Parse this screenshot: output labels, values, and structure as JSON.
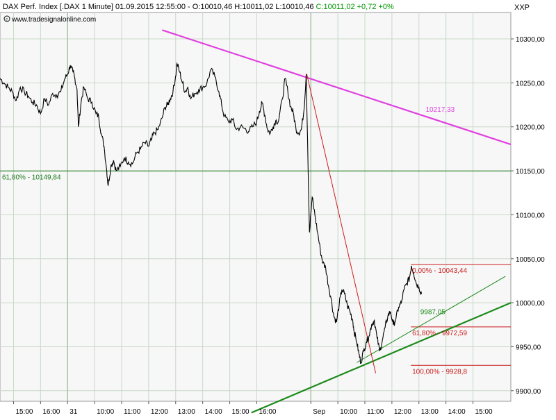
{
  "header": {
    "title": "DAX Perf. Index [.DAX  1 Minute] 01.09.2015 12:55:00 - ",
    "ohlc": "O:10010,46 H:10011,02 L:10010,46 ",
    "change": "C:10011,02 +0,72 +0%",
    "axis_label": "XXP",
    "website": "www.tradesignalonline.com"
  },
  "colors": {
    "plot_bg": "#f7f7f7",
    "grid": "#c8d8c8",
    "frame": "#9a9a9a",
    "price": "#000000",
    "resistance": "#e040e0",
    "support": "#1a8a1a",
    "level_green": "#1a7a1a",
    "fib": "#cc1b1b",
    "header_green": "#009900",
    "header_text": "#000000"
  },
  "chart_data": {
    "type": "line",
    "title": "DAX Perf. Index [.DAX  1 Minute]",
    "xlabel": "",
    "ylabel": "",
    "ylim": [
      9888,
      10330
    ],
    "grid": true,
    "y_ticks": [
      {
        "value": 10300,
        "label": "10300,00"
      },
      {
        "value": 10250,
        "label": "10250,00"
      },
      {
        "value": 10200,
        "label": "10200,00"
      },
      {
        "value": 10150,
        "label": "10150,00"
      },
      {
        "value": 10100,
        "label": "10100,00"
      },
      {
        "value": 10050,
        "label": "10050,00"
      },
      {
        "value": 10000,
        "label": "10000,00"
      },
      {
        "value": 9950,
        "label": "9950,00"
      },
      {
        "value": 9900,
        "label": "9900,00"
      }
    ],
    "x_ticks": [
      {
        "value": 0.5,
        "label": "15:00"
      },
      {
        "value": 1.5,
        "label": "16:00"
      },
      {
        "value": 2.5,
        "label": "31"
      },
      {
        "value": 3.5,
        "label": "10:00"
      },
      {
        "value": 4.5,
        "label": "11:00"
      },
      {
        "value": 5.5,
        "label": "12:00"
      },
      {
        "value": 6.5,
        "label": "13:00"
      },
      {
        "value": 7.5,
        "label": "14:00"
      },
      {
        "value": 8.5,
        "label": "15:00"
      },
      {
        "value": 9.5,
        "label": "16:00"
      },
      {
        "value": 11.5,
        "label": "Sep"
      },
      {
        "value": 12.5,
        "label": "10:00"
      },
      {
        "value": 13.5,
        "label": "11:00"
      },
      {
        "value": 14.5,
        "label": "12:00"
      },
      {
        "value": 15.5,
        "label": "13:00"
      },
      {
        "value": 16.5,
        "label": "14:00"
      },
      {
        "value": 17.5,
        "label": "15:00"
      }
    ],
    "day_separators": [
      2.5,
      11.5
    ],
    "xlim": [
      0,
      18.9
    ],
    "series": [
      {
        "values": [
          [
            0.0,
            10255
          ],
          [
            0.15,
            10250
          ],
          [
            0.3,
            10245
          ],
          [
            0.45,
            10240
          ],
          [
            0.6,
            10230
          ],
          [
            0.75,
            10245
          ],
          [
            0.9,
            10240
          ],
          [
            1.05,
            10235
          ],
          [
            1.2,
            10228
          ],
          [
            1.35,
            10225
          ],
          [
            1.5,
            10215
          ],
          [
            1.65,
            10232
          ],
          [
            1.8,
            10225
          ],
          [
            1.95,
            10238
          ],
          [
            2.1,
            10236
          ],
          [
            2.25,
            10240
          ],
          [
            2.4,
            10255
          ],
          [
            2.5,
            10260
          ],
          [
            2.6,
            10270
          ],
          [
            2.7,
            10262
          ],
          [
            2.75,
            10258
          ],
          [
            2.85,
            10243
          ],
          [
            2.9,
            10200
          ],
          [
            3.0,
            10228
          ],
          [
            3.1,
            10245
          ],
          [
            3.25,
            10232
          ],
          [
            3.4,
            10228
          ],
          [
            3.55,
            10215
          ],
          [
            3.65,
            10212
          ],
          [
            3.75,
            10192
          ],
          [
            3.85,
            10178
          ],
          [
            3.95,
            10150
          ],
          [
            4.0,
            10133
          ],
          [
            4.1,
            10155
          ],
          [
            4.2,
            10162
          ],
          [
            4.3,
            10150
          ],
          [
            4.45,
            10155
          ],
          [
            4.6,
            10165
          ],
          [
            4.75,
            10160
          ],
          [
            4.9,
            10158
          ],
          [
            5.05,
            10170
          ],
          [
            5.2,
            10175
          ],
          [
            5.35,
            10182
          ],
          [
            5.5,
            10178
          ],
          [
            5.6,
            10185
          ],
          [
            5.7,
            10193
          ],
          [
            5.85,
            10197
          ],
          [
            6.0,
            10210
          ],
          [
            6.1,
            10222
          ],
          [
            6.2,
            10225
          ],
          [
            6.3,
            10232
          ],
          [
            6.4,
            10240
          ],
          [
            6.5,
            10258
          ],
          [
            6.55,
            10272
          ],
          [
            6.65,
            10262
          ],
          [
            6.75,
            10250
          ],
          [
            6.85,
            10240
          ],
          [
            6.95,
            10245
          ],
          [
            7.05,
            10232
          ],
          [
            7.2,
            10238
          ],
          [
            7.35,
            10242
          ],
          [
            7.5,
            10245
          ],
          [
            7.65,
            10249
          ],
          [
            7.8,
            10265
          ],
          [
            7.95,
            10257
          ],
          [
            8.1,
            10240
          ],
          [
            8.2,
            10225
          ],
          [
            8.3,
            10212
          ],
          [
            8.45,
            10206
          ],
          [
            8.6,
            10208
          ],
          [
            8.75,
            10197
          ],
          [
            8.9,
            10200
          ],
          [
            9.05,
            10198
          ],
          [
            9.2,
            10195
          ],
          [
            9.35,
            10200
          ],
          [
            9.5,
            10206
          ],
          [
            9.6,
            10218
          ],
          [
            9.7,
            10227
          ],
          [
            9.8,
            10213
          ],
          [
            9.9,
            10197
          ],
          [
            10.0,
            10193
          ],
          [
            10.1,
            10200
          ],
          [
            10.2,
            10207
          ],
          [
            10.3,
            10206
          ],
          [
            10.45,
            10232
          ],
          [
            10.55,
            10255
          ],
          [
            10.65,
            10240
          ],
          [
            10.75,
            10223
          ],
          [
            10.85,
            10216
          ],
          [
            10.95,
            10198
          ],
          [
            11.05,
            10193
          ],
          [
            11.15,
            10197
          ],
          [
            11.25,
            10220
          ],
          [
            11.33,
            10260
          ],
          [
            11.45,
            10080
          ],
          [
            11.55,
            10120
          ],
          [
            11.65,
            10100
          ],
          [
            11.75,
            10080
          ],
          [
            11.85,
            10060
          ],
          [
            11.95,
            10045
          ],
          [
            12.05,
            10040
          ],
          [
            12.15,
            10020
          ],
          [
            12.25,
            10005
          ],
          [
            12.35,
            9985
          ],
          [
            12.45,
            9978
          ],
          [
            12.55,
            9998
          ],
          [
            12.65,
            10015
          ],
          [
            12.75,
            10010
          ],
          [
            12.85,
            9997
          ],
          [
            12.95,
            9990
          ],
          [
            13.05,
            9980
          ],
          [
            13.1,
            9968
          ],
          [
            13.2,
            9955
          ],
          [
            13.28,
            9942
          ],
          [
            13.35,
            9932
          ],
          [
            13.45,
            9945
          ],
          [
            13.55,
            9955
          ],
          [
            13.65,
            9962
          ],
          [
            13.75,
            9975
          ],
          [
            13.85,
            9980
          ],
          [
            13.95,
            9960
          ],
          [
            14.05,
            9945
          ],
          [
            14.15,
            9958
          ],
          [
            14.25,
            9972
          ],
          [
            14.35,
            9985
          ],
          [
            14.45,
            9990
          ],
          [
            14.55,
            9975
          ],
          [
            14.65,
            9982
          ],
          [
            14.75,
            9995
          ],
          [
            14.85,
            10000
          ],
          [
            14.95,
            10015
          ],
          [
            15.05,
            10022
          ],
          [
            15.15,
            10028
          ],
          [
            15.22,
            10042
          ],
          [
            15.3,
            10035
          ],
          [
            15.4,
            10022
          ],
          [
            15.5,
            10018
          ],
          [
            15.6,
            10010
          ]
        ]
      }
    ],
    "lines": [
      {
        "kind": "resistance",
        "from": [
          6.0,
          10310
        ],
        "to": [
          18.9,
          10180
        ],
        "label": "10217,33",
        "label_at": [
          15.75,
          10217
        ]
      },
      {
        "kind": "support-main",
        "from": [
          9.3,
          9875
        ],
        "to": [
          18.9,
          10000
        ]
      },
      {
        "kind": "support-thin",
        "from": [
          13.2,
          9932
        ],
        "to": [
          18.7,
          10030
        ],
        "label": "9987,05",
        "label_at": [
          15.55,
          9987
        ]
      },
      {
        "kind": "fib-swing",
        "from": [
          11.35,
          10260
        ],
        "to": [
          13.9,
          9920
        ]
      },
      {
        "kind": "level-green",
        "value": 10149.84,
        "label": "61,80% - 10149,84"
      }
    ],
    "fib_levels": [
      {
        "value": 10043.44,
        "label": "0,00% - 10043,44"
      },
      {
        "value": 9972.59,
        "label": "61,80% - 9972,59"
      },
      {
        "value": 9928.8,
        "label": "100,00% - 9928,8"
      }
    ]
  }
}
